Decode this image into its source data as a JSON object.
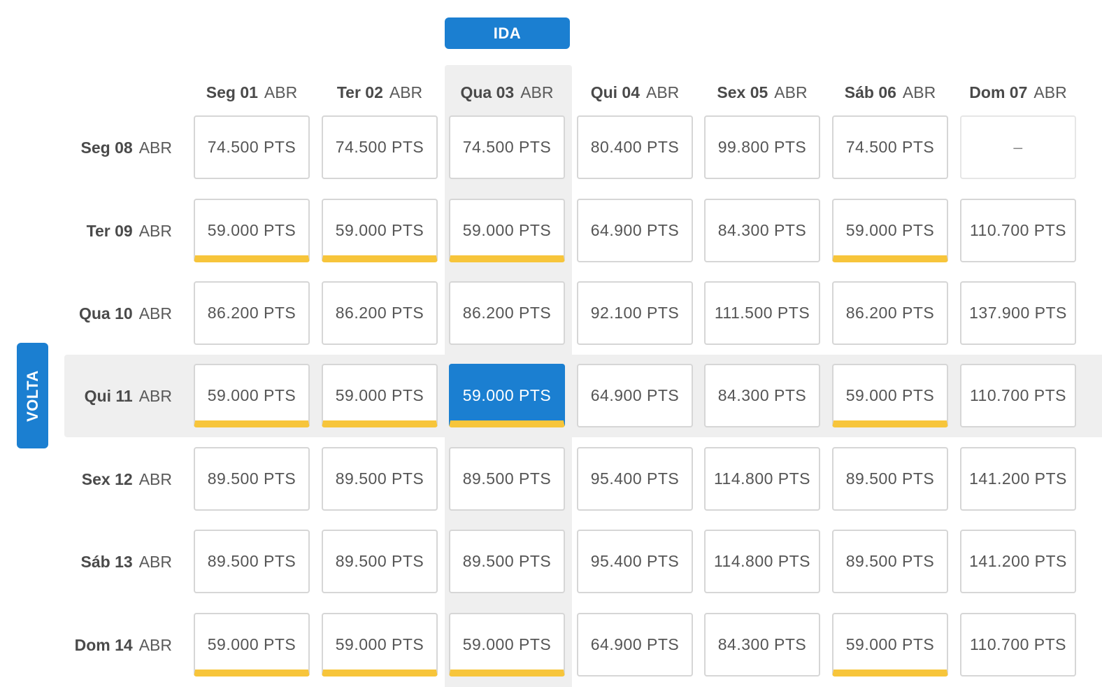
{
  "ida_label": "IDA",
  "volta_label": "VOLTA",
  "colors": {
    "accent": "#1b7fd1",
    "cheapest_marker": "#f7c53b",
    "highlight_bg": "#efefef"
  },
  "selected": {
    "ida": "Qua 03 ABR",
    "volta": "Qui 11 ABR"
  },
  "columns": [
    {
      "day": "Seg 01",
      "month": "ABR"
    },
    {
      "day": "Ter 02",
      "month": "ABR"
    },
    {
      "day": "Qua 03",
      "month": "ABR"
    },
    {
      "day": "Qui 04",
      "month": "ABR"
    },
    {
      "day": "Sex 05",
      "month": "ABR"
    },
    {
      "day": "Sáb 06",
      "month": "ABR"
    },
    {
      "day": "Dom 07",
      "month": "ABR"
    }
  ],
  "rows": [
    {
      "day": "Seg 08",
      "month": "ABR",
      "cells": [
        {
          "price": "74.500 PTS",
          "cheapest": false
        },
        {
          "price": "74.500 PTS",
          "cheapest": false
        },
        {
          "price": "74.500 PTS",
          "cheapest": false
        },
        {
          "price": "80.400 PTS",
          "cheapest": false
        },
        {
          "price": "99.800 PTS",
          "cheapest": false
        },
        {
          "price": "74.500 PTS",
          "cheapest": false
        },
        {
          "price": "–",
          "cheapest": false,
          "empty": true
        }
      ]
    },
    {
      "day": "Ter 09",
      "month": "ABR",
      "cells": [
        {
          "price": "59.000 PTS",
          "cheapest": true
        },
        {
          "price": "59.000 PTS",
          "cheapest": true
        },
        {
          "price": "59.000 PTS",
          "cheapest": true
        },
        {
          "price": "64.900 PTS",
          "cheapest": false
        },
        {
          "price": "84.300 PTS",
          "cheapest": false
        },
        {
          "price": "59.000 PTS",
          "cheapest": true
        },
        {
          "price": "110.700 PTS",
          "cheapest": false
        }
      ]
    },
    {
      "day": "Qua 10",
      "month": "ABR",
      "cells": [
        {
          "price": "86.200 PTS",
          "cheapest": false
        },
        {
          "price": "86.200 PTS",
          "cheapest": false
        },
        {
          "price": "86.200 PTS",
          "cheapest": false
        },
        {
          "price": "92.100 PTS",
          "cheapest": false
        },
        {
          "price": "111.500 PTS",
          "cheapest": false
        },
        {
          "price": "86.200 PTS",
          "cheapest": false
        },
        {
          "price": "137.900 PTS",
          "cheapest": false
        }
      ]
    },
    {
      "day": "Qui 11",
      "month": "ABR",
      "cells": [
        {
          "price": "59.000 PTS",
          "cheapest": true
        },
        {
          "price": "59.000 PTS",
          "cheapest": true
        },
        {
          "price": "59.000 PTS",
          "cheapest": true,
          "selected": true
        },
        {
          "price": "64.900 PTS",
          "cheapest": false
        },
        {
          "price": "84.300 PTS",
          "cheapest": false
        },
        {
          "price": "59.000 PTS",
          "cheapest": true
        },
        {
          "price": "110.700 PTS",
          "cheapest": false
        }
      ]
    },
    {
      "day": "Sex 12",
      "month": "ABR",
      "cells": [
        {
          "price": "89.500 PTS",
          "cheapest": false
        },
        {
          "price": "89.500 PTS",
          "cheapest": false
        },
        {
          "price": "89.500 PTS",
          "cheapest": false
        },
        {
          "price": "95.400 PTS",
          "cheapest": false
        },
        {
          "price": "114.800 PTS",
          "cheapest": false
        },
        {
          "price": "89.500 PTS",
          "cheapest": false
        },
        {
          "price": "141.200 PTS",
          "cheapest": false
        }
      ]
    },
    {
      "day": "Sáb 13",
      "month": "ABR",
      "cells": [
        {
          "price": "89.500 PTS",
          "cheapest": false
        },
        {
          "price": "89.500 PTS",
          "cheapest": false
        },
        {
          "price": "89.500 PTS",
          "cheapest": false
        },
        {
          "price": "95.400 PTS",
          "cheapest": false
        },
        {
          "price": "114.800 PTS",
          "cheapest": false
        },
        {
          "price": "89.500 PTS",
          "cheapest": false
        },
        {
          "price": "141.200 PTS",
          "cheapest": false
        }
      ]
    },
    {
      "day": "Dom 14",
      "month": "ABR",
      "cells": [
        {
          "price": "59.000 PTS",
          "cheapest": true
        },
        {
          "price": "59.000 PTS",
          "cheapest": true
        },
        {
          "price": "59.000 PTS",
          "cheapest": true
        },
        {
          "price": "64.900 PTS",
          "cheapest": false
        },
        {
          "price": "84.300 PTS",
          "cheapest": false
        },
        {
          "price": "59.000 PTS",
          "cheapest": true
        },
        {
          "price": "110.700 PTS",
          "cheapest": false
        }
      ]
    }
  ]
}
